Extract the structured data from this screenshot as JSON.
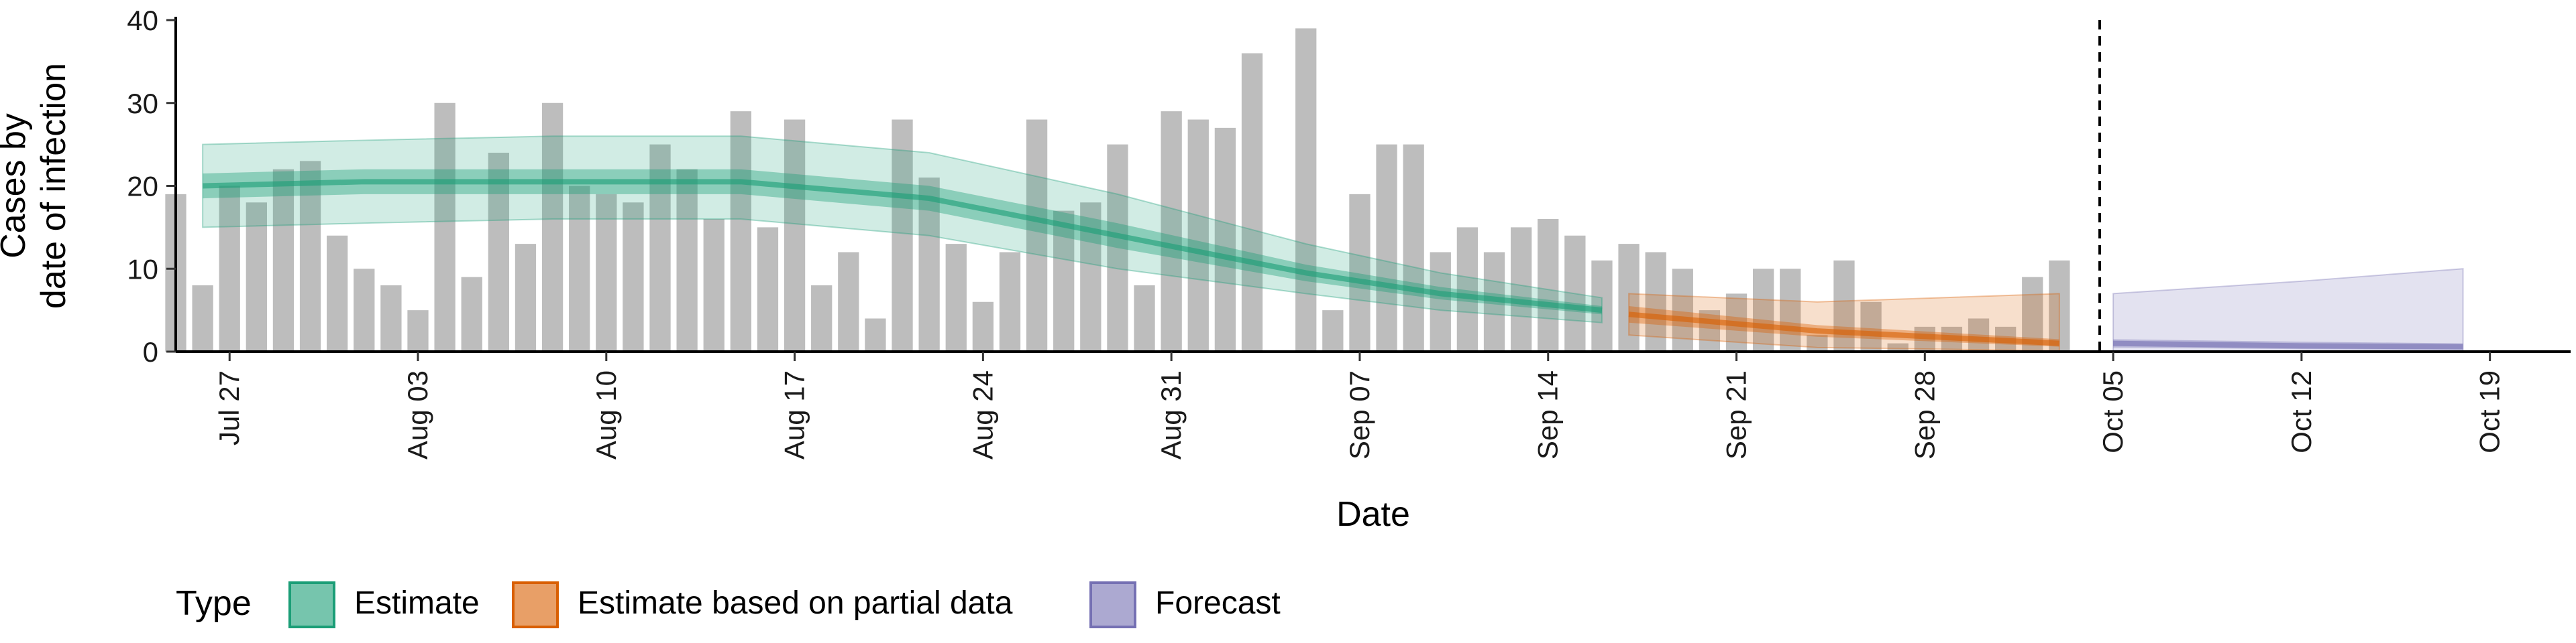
{
  "chart_data": {
    "type": "bar",
    "xlabel": "Date",
    "ylabel_lines": [
      "Cases by",
      "date of infection"
    ],
    "ylim": [
      0,
      40
    ],
    "y_ticks": [
      0,
      10,
      20,
      30,
      40
    ],
    "x_start": "2020-07-25",
    "x_end": "2020-10-22",
    "x_ticks": [
      {
        "date": "2020-07-27",
        "label": "Jul 27"
      },
      {
        "date": "2020-08-03",
        "label": "Aug 03"
      },
      {
        "date": "2020-08-10",
        "label": "Aug 10"
      },
      {
        "date": "2020-08-17",
        "label": "Aug 17"
      },
      {
        "date": "2020-08-24",
        "label": "Aug 24"
      },
      {
        "date": "2020-08-31",
        "label": "Aug 31"
      },
      {
        "date": "2020-09-07",
        "label": "Sep 07"
      },
      {
        "date": "2020-09-14",
        "label": "Sep 14"
      },
      {
        "date": "2020-09-21",
        "label": "Sep 21"
      },
      {
        "date": "2020-09-28",
        "label": "Sep 28"
      },
      {
        "date": "2020-10-05",
        "label": "Oct 05"
      },
      {
        "date": "2020-10-12",
        "label": "Oct 12"
      },
      {
        "date": "2020-10-19",
        "label": "Oct 19"
      }
    ],
    "vline_date": "2020-10-04",
    "observed_cases": {
      "start_date": "2020-07-25",
      "values": [
        19,
        8,
        20,
        18,
        22,
        23,
        14,
        10,
        8,
        5,
        30,
        9,
        24,
        13,
        30,
        20,
        19,
        18,
        25,
        22,
        16,
        29,
        15,
        28,
        8,
        12,
        4,
        28,
        21,
        13,
        6,
        12,
        28,
        17,
        18,
        25,
        8,
        29,
        28,
        27,
        36,
        0,
        39,
        5,
        19,
        25,
        25,
        12,
        15,
        12,
        15,
        16,
        14,
        11,
        13,
        12,
        10,
        5,
        7,
        10,
        10,
        2,
        11,
        6,
        1,
        3,
        3,
        4,
        3,
        9,
        11
      ]
    },
    "series": [
      {
        "name": "Estimate",
        "color": "#1b9e77",
        "points": [
          {
            "date": "2020-07-26",
            "median": 20,
            "lo50": 18.5,
            "hi50": 21.5,
            "lo90": 15,
            "hi90": 25
          },
          {
            "date": "2020-08-01",
            "median": 20.5,
            "lo50": 19,
            "hi50": 22,
            "lo90": 15.5,
            "hi90": 25.5
          },
          {
            "date": "2020-08-08",
            "median": 20.5,
            "lo50": 19,
            "hi50": 22,
            "lo90": 16,
            "hi90": 26
          },
          {
            "date": "2020-08-15",
            "median": 20.5,
            "lo50": 19,
            "hi50": 22,
            "lo90": 16,
            "hi90": 26
          },
          {
            "date": "2020-08-22",
            "median": 18.5,
            "lo50": 17,
            "hi50": 20,
            "lo90": 14,
            "hi90": 24
          },
          {
            "date": "2020-08-29",
            "median": 14,
            "lo50": 12.5,
            "hi50": 15.5,
            "lo90": 10,
            "hi90": 19
          },
          {
            "date": "2020-09-05",
            "median": 9.5,
            "lo50": 8.5,
            "hi50": 10.5,
            "lo90": 7,
            "hi90": 13
          },
          {
            "date": "2020-09-10",
            "median": 7,
            "lo50": 6.3,
            "hi50": 7.8,
            "lo90": 5,
            "hi90": 9.5
          },
          {
            "date": "2020-09-16",
            "median": 5,
            "lo50": 4.5,
            "hi50": 5.5,
            "lo90": 3.5,
            "hi90": 6.5
          }
        ]
      },
      {
        "name": "Estimate based on partial data",
        "color": "#d95f02",
        "points": [
          {
            "date": "2020-09-17",
            "median": 4.5,
            "lo50": 3.5,
            "hi50": 5.5,
            "lo90": 2,
            "hi90": 7
          },
          {
            "date": "2020-09-24",
            "median": 2.5,
            "lo50": 1.8,
            "hi50": 3.2,
            "lo90": 0.5,
            "hi90": 6
          },
          {
            "date": "2020-10-03",
            "median": 1,
            "lo50": 0.6,
            "hi50": 1.5,
            "lo90": 0.1,
            "hi90": 7
          }
        ]
      },
      {
        "name": "Forecast",
        "color": "#7570b3",
        "points": [
          {
            "date": "2020-10-05",
            "median": 1,
            "lo50": 0.5,
            "hi50": 1.5,
            "lo90": 0,
            "hi90": 7
          },
          {
            "date": "2020-10-12",
            "median": 0.7,
            "lo50": 0.3,
            "hi50": 1.2,
            "lo90": 0,
            "hi90": 8.5
          },
          {
            "date": "2020-10-18",
            "median": 0.6,
            "lo50": 0.2,
            "hi50": 1,
            "lo90": 0,
            "hi90": 10
          }
        ]
      }
    ],
    "legend": {
      "position": "bottom-left",
      "title": "Type",
      "entries": [
        "Estimate",
        "Estimate based on partial data",
        "Forecast"
      ]
    },
    "grid": false
  }
}
